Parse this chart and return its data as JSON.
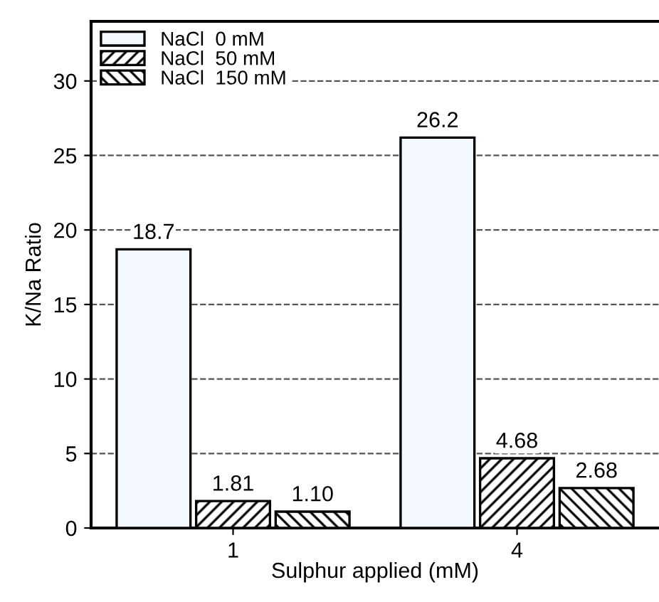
{
  "chart_data": {
    "type": "bar",
    "xlabel": "Sulphur applied (mM)",
    "ylabel": "K/Na Ratio",
    "categories": [
      "1",
      "4"
    ],
    "series": [
      {
        "name": "NaCl  0 mM",
        "color": "#f3f9ff",
        "values": [
          18.7,
          26.2
        ],
        "value_labels": [
          "18.7",
          "26.2"
        ]
      },
      {
        "name": "NaCl  50 mM",
        "color": "#000000",
        "values": [
          1.81,
          4.68
        ],
        "value_labels": [
          "1.81",
          "4.68"
        ]
      },
      {
        "name": "NaCl  150 mM",
        "color": "#000000",
        "values": [
          1.1,
          2.68
        ],
        "value_labels": [
          "1.10",
          "2.68"
        ]
      }
    ],
    "ylim": [
      0,
      34
    ],
    "yticks": [
      0,
      5,
      10,
      15,
      20,
      25,
      30
    ],
    "grid": "y",
    "legend": "top left"
  }
}
